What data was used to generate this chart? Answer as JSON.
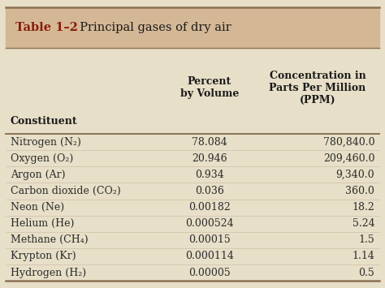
{
  "title_bold": "Table 1–2",
  "title_regular": "  Principal gases of dry air",
  "header_bg": "#d4b896",
  "table_bg": "#e8dfc8",
  "border_color": "#8b7355",
  "col_headers_line1": [
    "Constituent",
    "Percent",
    "Concentration in"
  ],
  "col_headers_line2": [
    "",
    "by Volume",
    "Parts Per Million"
  ],
  "col_headers_line3": [
    "",
    "",
    "(PPM)"
  ],
  "rows": [
    [
      "Nitrogen (N₂)",
      "78.084",
      "780,840.0"
    ],
    [
      "Oxygen (O₂)",
      "20.946",
      "209,460.0"
    ],
    [
      "Argon (Ar)",
      "0.934",
      "9,340.0"
    ],
    [
      "Carbon dioxide (CO₂)",
      "0.036",
      "360.0"
    ],
    [
      "Neon (Ne)",
      "0.00182",
      "18.2"
    ],
    [
      "Helium (He)",
      "0.000524",
      "5.24"
    ],
    [
      "Methane (CH₄)",
      "0.00015",
      "1.5"
    ],
    [
      "Krypton (Kr)",
      "0.000114",
      "1.14"
    ],
    [
      "Hydrogen (H₂)",
      "0.00005",
      "0.5"
    ]
  ],
  "col_aligns": [
    "left",
    "center",
    "right"
  ],
  "text_color": "#2b2b2b",
  "header_text_color": "#1a1a1a",
  "font_size": 9.0,
  "header_font_size": 9.0,
  "title_font_size": 10.5,
  "figsize": [
    4.74,
    3.55
  ],
  "dpi": 100
}
